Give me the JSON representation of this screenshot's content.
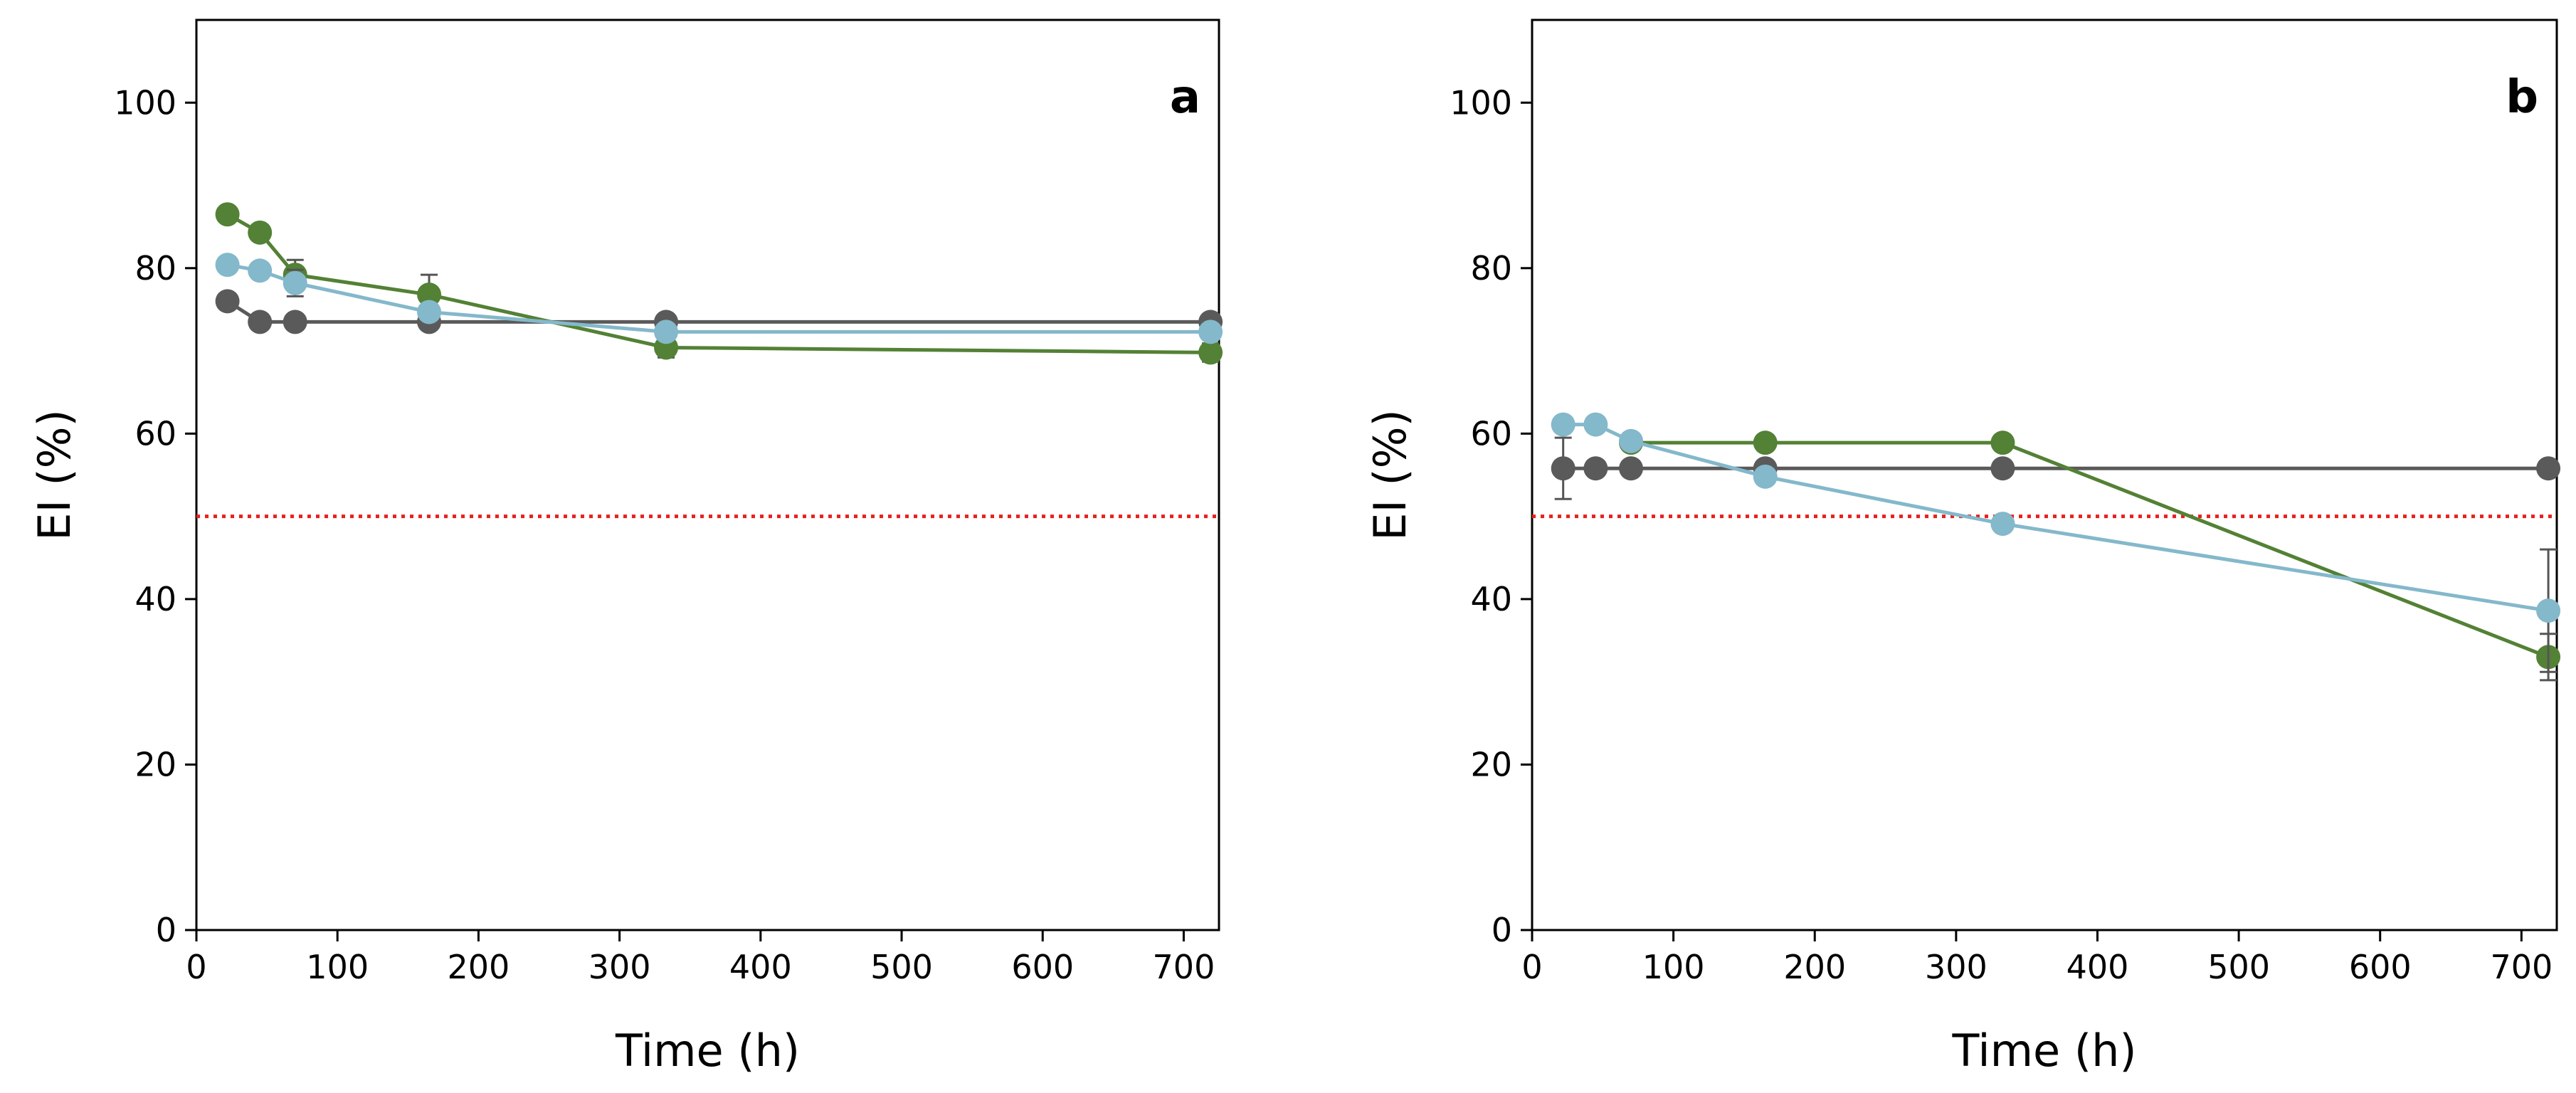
{
  "chart_data": [
    {
      "type": "line",
      "panel_label": "a",
      "xlabel": "Time (h)",
      "ylabel": "EI (%)",
      "xlim": [
        0,
        725
      ],
      "ylim": [
        0,
        110
      ],
      "x_ticks": [
        0,
        100,
        200,
        300,
        400,
        500,
        600,
        700
      ],
      "y_ticks": [
        0,
        20,
        40,
        60,
        80,
        100
      ],
      "threshold": 50,
      "series": [
        {
          "name": "dark-gray",
          "color": "#5a5a5a",
          "x": [
            22,
            45,
            70,
            165,
            333,
            719
          ],
          "y": [
            76,
            73.5,
            73.5,
            73.5,
            73.5,
            73.5
          ],
          "err": [
            0,
            0,
            0,
            0,
            0,
            0
          ]
        },
        {
          "name": "green",
          "color": "#538135",
          "x": [
            22,
            45,
            70,
            165,
            333,
            719
          ],
          "y": [
            86.5,
            84.3,
            79.2,
            76.8,
            70.4,
            69.8
          ],
          "err": [
            0,
            0,
            1.8,
            2.4,
            1.2,
            1.1
          ]
        },
        {
          "name": "light-blue",
          "color": "#84b8cb",
          "x": [
            22,
            45,
            70,
            165,
            333,
            719
          ],
          "y": [
            80.4,
            79.7,
            78.2,
            74.7,
            72.3,
            72.3
          ],
          "err": [
            0,
            0,
            1.6,
            0,
            0,
            0
          ]
        }
      ]
    },
    {
      "type": "line",
      "panel_label": "b",
      "xlabel": "Time (h)",
      "ylabel": "EI (%)",
      "xlim": [
        0,
        725
      ],
      "ylim": [
        0,
        110
      ],
      "x_ticks": [
        0,
        100,
        200,
        300,
        400,
        500,
        600,
        700
      ],
      "y_ticks": [
        0,
        20,
        40,
        60,
        80,
        100
      ],
      "threshold": 50,
      "series": [
        {
          "name": "dark-gray",
          "color": "#5a5a5a",
          "x": [
            22,
            45,
            70,
            165,
            333,
            719
          ],
          "y": [
            55.8,
            55.8,
            55.8,
            55.8,
            55.8,
            55.8
          ],
          "err": [
            3.7,
            0,
            0,
            0,
            0,
            0
          ]
        },
        {
          "name": "green",
          "color": "#538135",
          "x": [
            70,
            165,
            333,
            719
          ],
          "y": [
            58.9,
            58.9,
            58.9,
            33.0
          ],
          "err": [
            0,
            0,
            0,
            2.8
          ]
        },
        {
          "name": "light-blue",
          "color": "#84b8cb",
          "x": [
            22,
            45,
            70,
            165,
            333,
            719
          ],
          "y": [
            61.1,
            61.1,
            59.1,
            54.8,
            49.1,
            38.6
          ],
          "err": [
            0,
            0,
            0,
            0,
            0,
            7.4
          ]
        }
      ]
    }
  ]
}
